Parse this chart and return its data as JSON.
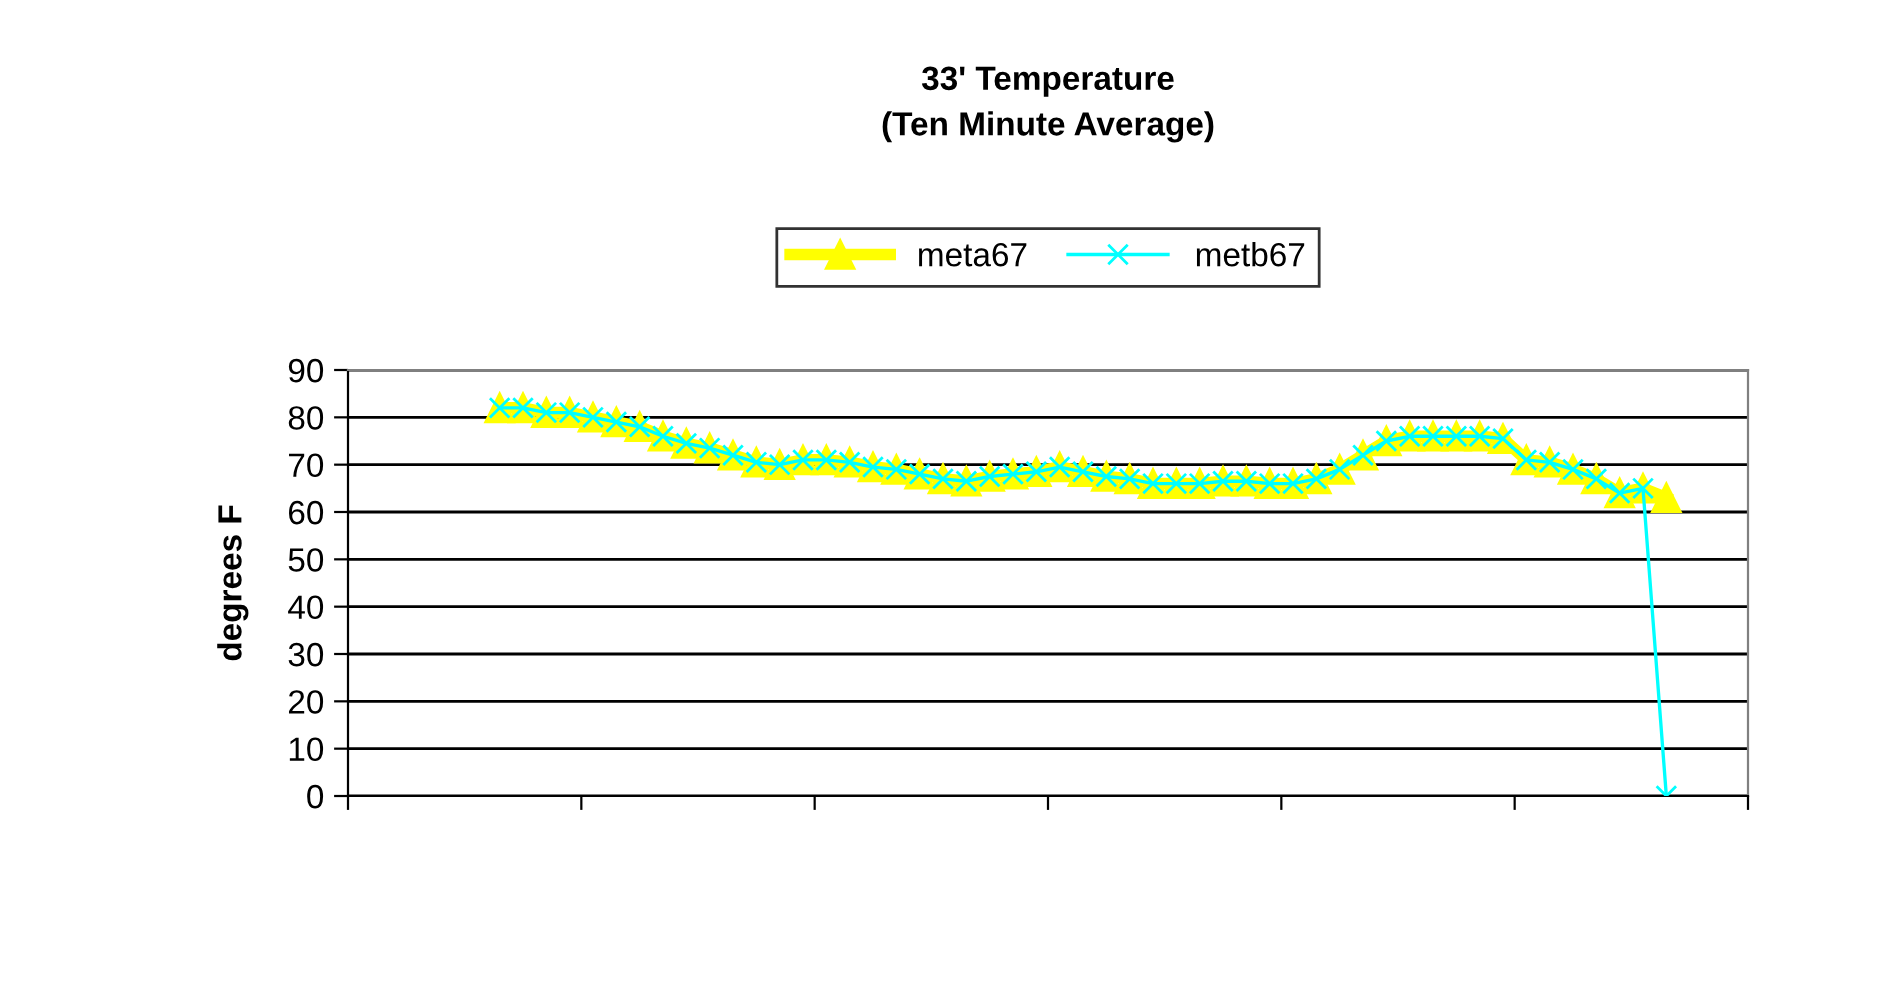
{
  "chart_data": {
    "type": "line",
    "title": "33' Temperature\n(Ten Minute Average)",
    "ylabel": "degrees F",
    "categories": [
      null,
      null,
      null,
      null,
      null,
      null,
      null,
      null,
      null,
      null,
      null,
      null,
      null,
      null,
      null,
      null,
      null,
      null,
      null,
      null,
      null,
      null,
      null,
      null,
      null,
      null,
      null,
      null,
      null,
      null,
      null,
      null,
      null,
      null,
      null,
      null,
      null,
      null,
      null,
      null,
      null,
      null,
      null,
      null,
      null,
      null,
      null,
      null,
      null,
      null,
      null,
      null,
      null,
      null,
      null,
      null,
      null,
      null,
      null,
      null
    ],
    "series": [
      {
        "name": "meta67",
        "color": "#ffff00",
        "marker": "triangle",
        "values": [
          null,
          null,
          null,
          null,
          null,
          null,
          82,
          82,
          81,
          81,
          80,
          79,
          78,
          76,
          74.5,
          73.5,
          72,
          70.5,
          70,
          71,
          71,
          70.5,
          69.5,
          69,
          68,
          67,
          66.5,
          67.5,
          68,
          68.5,
          69.5,
          68.5,
          67.5,
          67,
          66,
          66,
          66,
          66.5,
          66.5,
          66,
          66,
          67,
          69,
          72,
          75,
          76,
          76,
          76,
          76,
          75.5,
          71,
          70.5,
          69,
          67,
          64,
          65,
          63,
          null,
          null,
          null
        ]
      },
      {
        "name": "metb67",
        "color": "#00ffff",
        "marker": "cross",
        "values": [
          null,
          null,
          null,
          null,
          null,
          null,
          82,
          82,
          81,
          81,
          80,
          79,
          78,
          76,
          74.5,
          73.5,
          72,
          70.5,
          70,
          71,
          71,
          70.5,
          69.5,
          69,
          68,
          67,
          66.5,
          67.5,
          68,
          68.5,
          69.5,
          68.5,
          67.5,
          67,
          66,
          66,
          66,
          66.5,
          66.5,
          66,
          66,
          67,
          69,
          72,
          75,
          76,
          76,
          76,
          76,
          75.5,
          71,
          70.5,
          69,
          67,
          64,
          65,
          0,
          null,
          null,
          null
        ]
      }
    ],
    "ylim": [
      0,
      90
    ],
    "yticks": [
      0,
      10,
      20,
      30,
      40,
      50,
      60,
      70,
      80,
      90
    ],
    "grid": "y",
    "legend": "top",
    "tick_labels": "y",
    "line_style": "solid"
  }
}
